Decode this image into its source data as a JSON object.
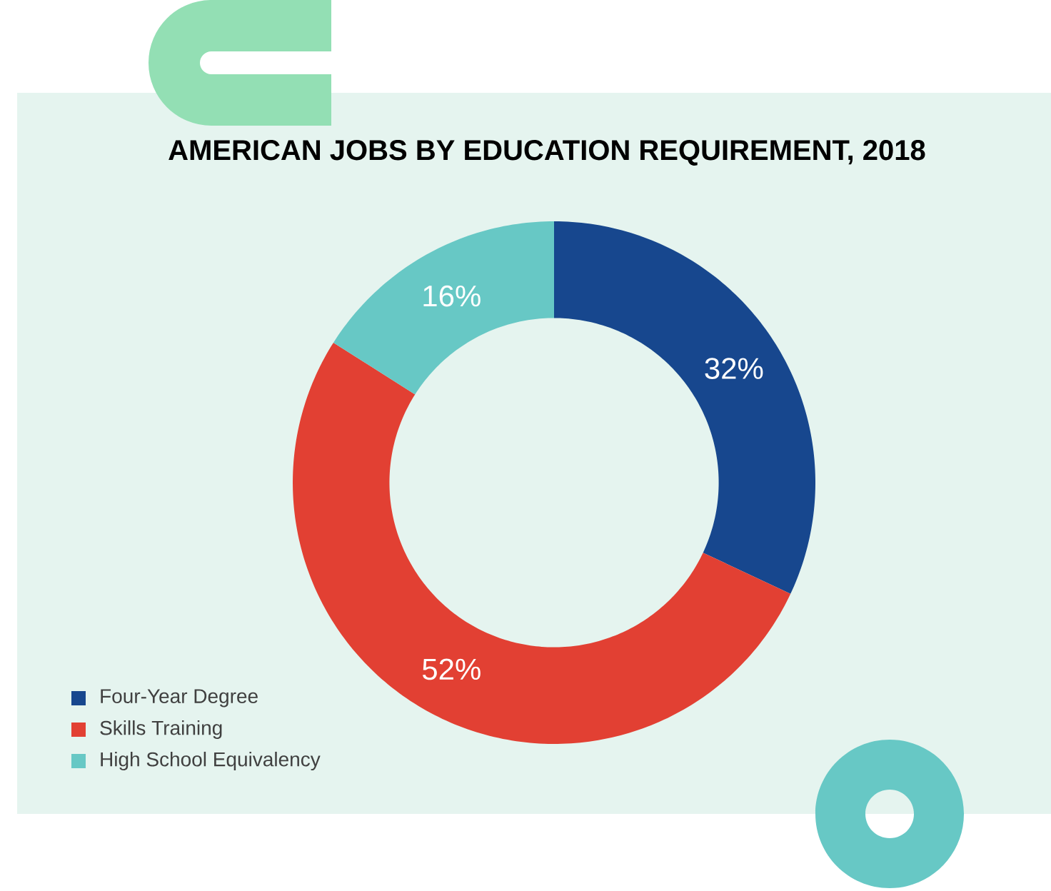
{
  "chart_data": {
    "type": "donut",
    "title": "AMERICAN JOBS BY EDUCATION REQUIREMENT, 2018",
    "categories": [
      "Four-Year Degree",
      "Skills Training",
      "High School Equivalency"
    ],
    "values": [
      32,
      52,
      16
    ],
    "colors": [
      "#17478e",
      "#e24033",
      "#67c8c5"
    ],
    "value_labels": [
      "32%",
      "52%",
      "16%"
    ],
    "legend": "bottom left"
  }
}
